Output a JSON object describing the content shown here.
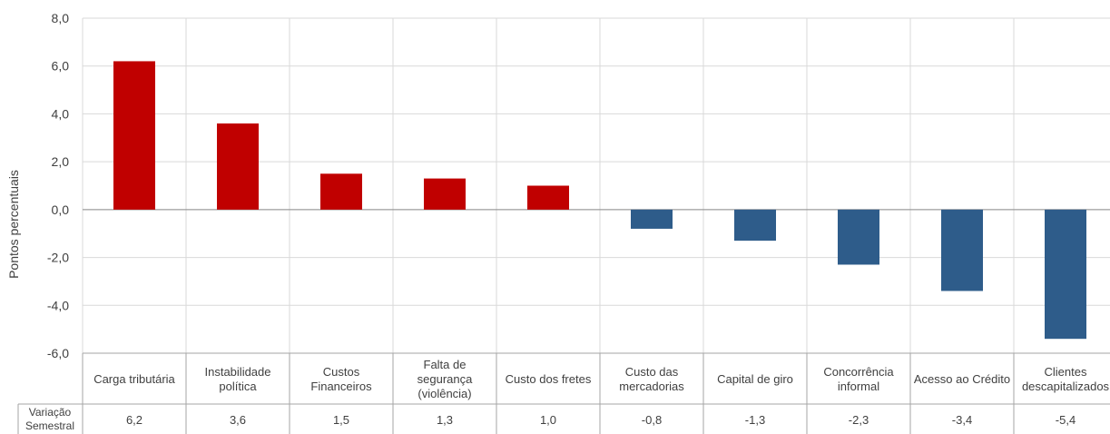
{
  "chart_data": {
    "type": "bar",
    "ylabel": "Pontos percentuais",
    "ylim": [
      -6,
      8
    ],
    "yticks": [
      "8,0",
      "6,0",
      "4,0",
      "2,0",
      "0,0",
      "-2,0",
      "-4,0",
      "-6,0"
    ],
    "ytick_values": [
      8,
      6,
      4,
      2,
      0,
      -2,
      -4,
      -6
    ],
    "grid": true,
    "categories": [
      [
        "Carga tributária"
      ],
      [
        "Instabilidade",
        "política"
      ],
      [
        "Custos",
        "Financeiros"
      ],
      [
        "Falta de",
        "segurança",
        "(violência)"
      ],
      [
        "Custo dos fretes"
      ],
      [
        "Custo das",
        "mercadorias"
      ],
      [
        "Capital de giro"
      ],
      [
        "Concorrência",
        "informal"
      ],
      [
        "Acesso ao Crédito"
      ],
      [
        "Clientes",
        "descapitalizados"
      ]
    ],
    "values": [
      6.2,
      3.6,
      1.5,
      1.3,
      1.0,
      -0.8,
      -1.3,
      -2.3,
      -3.4,
      -5.4
    ],
    "value_labels": [
      "6,2",
      "3,6",
      "1,5",
      "1,3",
      "1,0",
      "-0,8",
      "-1,3",
      "-2,3",
      "-3,4",
      "-5,4"
    ],
    "table_row_label": [
      "Variação",
      "Semestral"
    ],
    "colors": {
      "positive": "#C00000",
      "negative": "#2E5C8A",
      "grid": "#D9D9D9",
      "axis": "#A6A6A6",
      "text": "#404040"
    }
  }
}
